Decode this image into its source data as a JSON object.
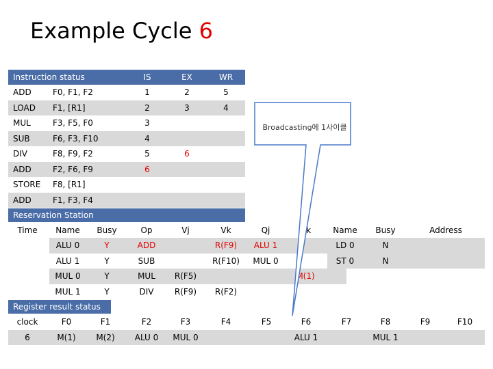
{
  "title": {
    "text": "Example Cycle",
    "cycle": "6"
  },
  "instruction_status": {
    "header": {
      "label": "Instruction status",
      "is": "IS",
      "ex": "EX",
      "wr": "WR"
    },
    "rows": [
      {
        "op": "ADD",
        "args": "F0, F1, F2",
        "is": "1",
        "ex": "2",
        "wr": "5"
      },
      {
        "op": "LOAD",
        "args": "F1, [R1]",
        "is": "2",
        "ex": "3",
        "wr": "4"
      },
      {
        "op": "MUL",
        "args": "F3, F5, F0",
        "is": "3",
        "ex": "",
        "wr": ""
      },
      {
        "op": "SUB",
        "args": "F6, F3, F10",
        "is": "4",
        "ex": "",
        "wr": ""
      },
      {
        "op": "DIV",
        "args": "F8, F9, F2",
        "is": "5",
        "ex": "6",
        "wr": ""
      },
      {
        "op": "ADD",
        "args": "F2, F6, F9",
        "is": "6",
        "ex": "",
        "wr": ""
      },
      {
        "op": "STORE",
        "args": "F8, [R1]",
        "is": "",
        "ex": "",
        "wr": ""
      },
      {
        "op": "ADD",
        "args": "F1, F3, F4",
        "is": "",
        "ex": "",
        "wr": ""
      }
    ]
  },
  "callout": {
    "text": "Broadcasting에 1사이클"
  },
  "reservation_station": {
    "header": "Reservation Station",
    "columns": {
      "time": "Time",
      "name": "Name",
      "busy": "Busy",
      "op": "Op",
      "vj": "Vj",
      "vk": "Vk",
      "qj": "Qj",
      "qk": "Qk",
      "name2": "Name",
      "busy2": "Busy",
      "address": "Address"
    },
    "rows": [
      {
        "name": "ALU 0",
        "busy": "Y",
        "op": "ADD",
        "vj": "",
        "vk": "R(F9)",
        "qj": "ALU 1",
        "qk": "",
        "name2": "LD 0",
        "busy2": "N",
        "address": ""
      },
      {
        "name": "ALU 1",
        "busy": "Y",
        "op": "SUB",
        "vj": "",
        "vk": "R(F10)",
        "qj": "MUL 0",
        "qk": "",
        "name2": "ST 0",
        "busy2": "N",
        "address": ""
      },
      {
        "name": "MUL 0",
        "busy": "Y",
        "op": "MUL",
        "vj": "R(F5)",
        "vk": "",
        "qj": "",
        "qk": "M(1)",
        "name2": "",
        "busy2": "",
        "address": ""
      },
      {
        "name": "MUL 1",
        "busy": "Y",
        "op": "DIV",
        "vj": "R(F9)",
        "vk": "R(F2)",
        "qj": "",
        "qk": "",
        "name2": "",
        "busy2": "",
        "address": ""
      }
    ]
  },
  "register_status": {
    "header": "Register result status",
    "labels": [
      "clock",
      "F0",
      "F1",
      "F2",
      "F3",
      "F4",
      "F5",
      "F6",
      "F7",
      "F8",
      "F9",
      "F10"
    ],
    "values": [
      "6",
      "M(1)",
      "M(2)",
      "ALU 0",
      "MUL 0",
      "",
      "",
      "ALU 1",
      "",
      "MUL 1",
      "",
      ""
    ]
  },
  "colors": {
    "header_bg": "#4a6da7",
    "stripe": "#d9d9d9",
    "highlight": "#e00000",
    "callout_fill": "#4a78c8"
  }
}
